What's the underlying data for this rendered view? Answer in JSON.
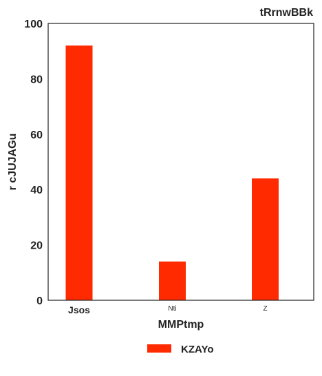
{
  "chart_data": {
    "type": "bar",
    "title": "tRrnwBBk",
    "xlabel": "MMPtmp",
    "ylabel": "r cJUJAGu",
    "categories": [
      "Jsos",
      "Nti",
      "Z"
    ],
    "series": [
      {
        "name": "KZAYo",
        "values": [
          92,
          14,
          44
        ],
        "color": "#ff2a00"
      }
    ],
    "ylim": [
      0,
      100
    ],
    "yticks": [
      0,
      20,
      40,
      60,
      80,
      100
    ],
    "grid": false,
    "legend_position": "bottom-center"
  }
}
